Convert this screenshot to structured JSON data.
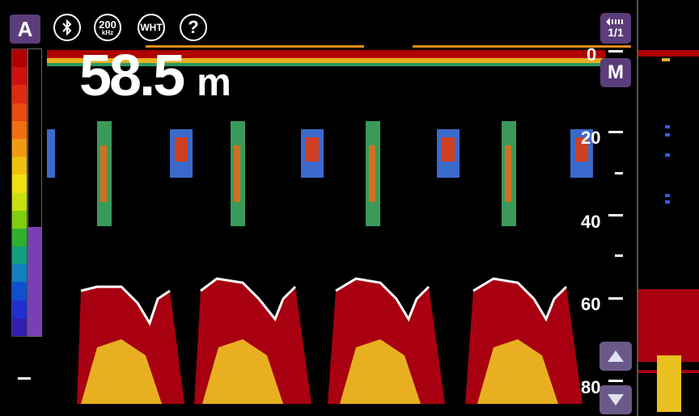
{
  "toolbar": {
    "mode_label": "A",
    "bluetooth_icon": "bluetooth-icon",
    "frequency_value": "200",
    "frequency_unit": "kHz",
    "color_scheme_label": "WHT",
    "help_label": "?"
  },
  "depth": {
    "value": "58.5",
    "unit": "m"
  },
  "depth_scale": {
    "labels": [
      "0",
      "20",
      "40",
      "60",
      "80"
    ],
    "menu_label": "M"
  },
  "pager": {
    "icon": "signal-history-icon",
    "label": "1/1"
  },
  "controls": {
    "up_icon": "triangle-up-icon",
    "down_icon": "triangle-down-icon"
  },
  "palette_colors": [
    "#b00000",
    "#d01010",
    "#e02a10",
    "#e84a10",
    "#f07010",
    "#f09a10",
    "#f0c010",
    "#f0e010",
    "#c8e010",
    "#80cc10",
    "#30b030",
    "#10a080",
    "#1080c0",
    "#1050d0",
    "#2030d0",
    "#3020b0"
  ],
  "gain_level_percent": 38,
  "accent_color": "#e08a1a"
}
